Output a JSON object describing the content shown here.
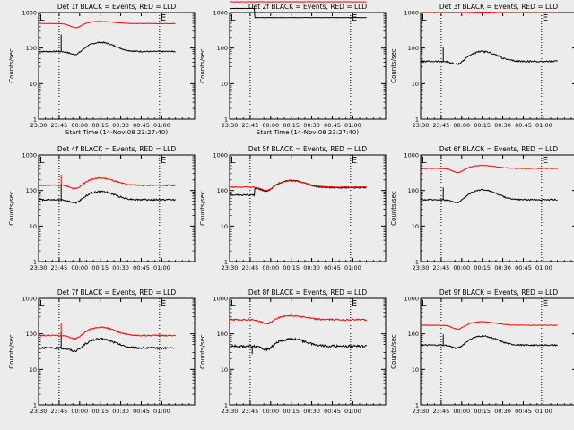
{
  "chart_data": [
    {
      "type": "line",
      "title": "Det 1f BLACK = Events, RED = LLD",
      "xlabel": "Start Time (14-Nov-08 23:27:40)",
      "ylabel": "Counts/sec",
      "yscale": "log",
      "ylim": [
        1,
        1000
      ],
      "yticks": [
        "1",
        "10",
        "100",
        "1000"
      ],
      "xticks": [
        "23:30",
        "23:45",
        "00:00",
        "00:15",
        "00:30",
        "00:45",
        "01:00"
      ],
      "xlim_min": [
        -12.333,
        101.667
      ],
      "xtick_min": [
        -12.333,
        2.667,
        17.667,
        32.667,
        47.667,
        62.667,
        77.667
      ],
      "vlines_min": [
        2.667,
        76.0
      ],
      "markers": [
        {
          "label": "L",
          "x_min": -12.3
        },
        {
          "label": "E",
          "x_min": 76.0
        }
      ],
      "grid": false,
      "series": [
        {
          "name": "BLACK = Events",
          "color": "#000000",
          "base": 80,
          "bump": 1.8,
          "step": null,
          "spike": [
            4,
            3.0
          ],
          "noise": 0.04
        },
        {
          "name": "RED = LLD",
          "color": "#ff0000",
          "base": 490,
          "bump": 1.15,
          "step": null,
          "spike": null,
          "noise": 0.015
        }
      ]
    },
    {
      "type": "line",
      "title": "Det 2f BLACK = Events, RED = LLD",
      "xlabel": "Start Time (14-Nov-08 23:27:40)",
      "ylabel": "Counts/sec",
      "yscale": "log",
      "ylim": [
        1,
        1000
      ],
      "yticks": [
        "1",
        "10",
        "100",
        "1000"
      ],
      "xticks": [
        "23:30",
        "23:45",
        "00:00",
        "00:15",
        "00:30",
        "00:45",
        "01:00"
      ],
      "xlim_min": [
        -12.333,
        101.667
      ],
      "xtick_min": [
        -12.333,
        2.667,
        17.667,
        32.667,
        47.667,
        62.667,
        77.667
      ],
      "vlines_min": [
        2.667,
        76.0
      ],
      "markers": [
        {
          "label": "L",
          "x_min": -12.3
        },
        {
          "label": "E",
          "x_min": 76.0
        }
      ],
      "grid": false,
      "series": [
        {
          "name": "BLACK = Events",
          "color": "#000000",
          "base": 1300,
          "bump": 1.0,
          "step": [
            6,
            720
          ],
          "spike": null,
          "noise": 0.01
        },
        {
          "name": "RED = LLD",
          "color": "#ff0000",
          "base": 2000,
          "bump": 1.0,
          "step": null,
          "spike": null,
          "noise": 0.01
        }
      ]
    },
    {
      "type": "line",
      "title": "Det 3f BLACK = Events, RED = LLD",
      "xlabel": "",
      "ylabel": "Counts/sec",
      "yscale": "log",
      "ylim": [
        1,
        1000
      ],
      "yticks": [
        "1",
        "10",
        "100",
        "1000"
      ],
      "xticks": [
        "23:30",
        "23:45",
        "00:00",
        "00:15",
        "00:30",
        "00:45",
        "01:00"
      ],
      "xlim_min": [
        -12.333,
        101.667
      ],
      "xtick_min": [
        -12.333,
        2.667,
        17.667,
        32.667,
        47.667,
        62.667,
        77.667
      ],
      "vlines_min": [
        2.667,
        76.0
      ],
      "markers": [
        {
          "label": "L",
          "x_min": -12.3
        },
        {
          "label": "E",
          "x_min": 76.0
        }
      ],
      "grid": false,
      "series": [
        {
          "name": "BLACK = Events",
          "color": "#000000",
          "base": 42,
          "bump": 1.9,
          "step": null,
          "spike": [
            4,
            2.5
          ],
          "noise": 0.05
        },
        {
          "name": "RED = LLD",
          "color": "#ff0000",
          "base": 980,
          "bump": 1.05,
          "step": null,
          "spike": null,
          "noise": 0.015
        }
      ]
    },
    {
      "type": "line",
      "title": "Det 4f BLACK = Events, RED = LLD",
      "xlabel": "",
      "ylabel": "Counts/sec",
      "yscale": "log",
      "ylim": [
        1,
        1000
      ],
      "yticks": [
        "1",
        "10",
        "100",
        "1000"
      ],
      "xticks": [
        "23:30",
        "23:45",
        "00:00",
        "00:15",
        "00:30",
        "00:45",
        "01:00"
      ],
      "xlim_min": [
        -12.333,
        101.667
      ],
      "xtick_min": [
        -12.333,
        2.667,
        17.667,
        32.667,
        47.667,
        62.667,
        77.667
      ],
      "vlines_min": [
        2.667,
        76.0
      ],
      "markers": [
        {
          "label": "L",
          "x_min": -12.3
        },
        {
          "label": "E",
          "x_min": 76.0
        }
      ],
      "grid": false,
      "series": [
        {
          "name": "BLACK = Events",
          "color": "#000000",
          "base": 55,
          "bump": 1.7,
          "step": null,
          "spike": [
            4,
            2.8
          ],
          "noise": 0.05
        },
        {
          "name": "RED = LLD",
          "color": "#ff0000",
          "base": 140,
          "bump": 1.6,
          "step": null,
          "spike": [
            4,
            2.0
          ],
          "noise": 0.04
        }
      ]
    },
    {
      "type": "line",
      "title": "Det 5f BLACK = Events, RED = LLD",
      "xlabel": "",
      "ylabel": "Counts/sec",
      "yscale": "log",
      "ylim": [
        1,
        1000
      ],
      "yticks": [
        "1",
        "10",
        "100",
        "1000"
      ],
      "xticks": [
        "23:30",
        "23:45",
        "00:00",
        "00:15",
        "00:30",
        "00:45",
        "01:00"
      ],
      "xlim_min": [
        -12.333,
        101.667
      ],
      "xtick_min": [
        -12.333,
        2.667,
        17.667,
        32.667,
        47.667,
        62.667,
        77.667
      ],
      "vlines_min": [
        2.667,
        76.0
      ],
      "markers": [
        {
          "label": "L",
          "x_min": -12.3
        },
        {
          "label": "E",
          "x_min": 76.0
        }
      ],
      "grid": false,
      "series": [
        {
          "name": "BLACK = Events",
          "color": "#000000",
          "base": 75,
          "bump": 1.6,
          "step": [
            6,
            120
          ],
          "spike": null,
          "noise": 0.04
        },
        {
          "name": "RED = LLD",
          "color": "#ff0000",
          "base": 125,
          "bump": 1.5,
          "step": null,
          "spike": null,
          "noise": 0.03
        }
      ]
    },
    {
      "type": "line",
      "title": "Det 6f BLACK = Events, RED = LLD",
      "xlabel": "",
      "ylabel": "Counts/sec",
      "yscale": "log",
      "ylim": [
        1,
        1000
      ],
      "yticks": [
        "1",
        "10",
        "100",
        "1000"
      ],
      "xticks": [
        "23:30",
        "23:45",
        "00:00",
        "00:15",
        "00:30",
        "00:45",
        "01:00"
      ],
      "xlim_min": [
        -12.333,
        101.667
      ],
      "xtick_min": [
        -12.333,
        2.667,
        17.667,
        32.667,
        47.667,
        62.667,
        77.667
      ],
      "vlines_min": [
        2.667,
        76.0
      ],
      "markers": [
        {
          "label": "L",
          "x_min": -12.3
        },
        {
          "label": "E",
          "x_min": 76.0
        }
      ],
      "grid": false,
      "series": [
        {
          "name": "BLACK = Events",
          "color": "#000000",
          "base": 55,
          "bump": 1.9,
          "step": null,
          "spike": [
            4,
            2.2
          ],
          "noise": 0.04
        },
        {
          "name": "RED = LLD",
          "color": "#ff0000",
          "base": 420,
          "bump": 1.2,
          "step": null,
          "spike": null,
          "noise": 0.02
        }
      ]
    },
    {
      "type": "line",
      "title": "Det 7f BLACK = Events, RED = LLD",
      "xlabel": "",
      "ylabel": "Counts/sec",
      "yscale": "log",
      "ylim": [
        1,
        1000
      ],
      "yticks": [
        "1",
        "10",
        "100",
        "1000"
      ],
      "xticks": [
        "23:30",
        "23:45",
        "00:00",
        "00:15",
        "00:30",
        "00:45",
        "01:00"
      ],
      "xlim_min": [
        -12.333,
        101.667
      ],
      "xtick_min": [
        -12.333,
        2.667,
        17.667,
        32.667,
        47.667,
        62.667,
        77.667
      ],
      "vlines_min": [
        2.667,
        76.0
      ],
      "markers": [
        {
          "label": "L",
          "x_min": -12.3
        },
        {
          "label": "E",
          "x_min": 76.0
        }
      ],
      "grid": false,
      "series": [
        {
          "name": "BLACK = Events",
          "color": "#000000",
          "base": 40,
          "bump": 1.8,
          "step": null,
          "spike": [
            4,
            2.8
          ],
          "noise": 0.06
        },
        {
          "name": "RED = LLD",
          "color": "#ff0000",
          "base": 90,
          "bump": 1.7,
          "step": null,
          "spike": [
            4,
            2.2
          ],
          "noise": 0.04
        }
      ]
    },
    {
      "type": "line",
      "title": "Det 8f BLACK = Events, RED = LLD",
      "xlabel": "",
      "ylabel": "Counts/sec",
      "yscale": "log",
      "ylim": [
        1,
        1000
      ],
      "yticks": [
        "1",
        "10",
        "100",
        "1000"
      ],
      "xticks": [
        "23:30",
        "23:45",
        "00:00",
        "00:15",
        "00:30",
        "00:45",
        "01:00"
      ],
      "xlim_min": [
        -12.333,
        101.667
      ],
      "xtick_min": [
        -12.333,
        2.667,
        17.667,
        32.667,
        47.667,
        62.667,
        77.667
      ],
      "vlines_min": [
        2.667,
        76.0
      ],
      "markers": [
        {
          "label": "L",
          "x_min": -12.3
        },
        {
          "label": "E",
          "x_min": 76.0
        }
      ],
      "grid": false,
      "series": [
        {
          "name": "BLACK = Events",
          "color": "#000000",
          "base": 45,
          "bump": 1.6,
          "step": null,
          "spike": [
            4,
            0.6
          ],
          "noise": 0.07
        },
        {
          "name": "RED = LLD",
          "color": "#ff0000",
          "base": 250,
          "bump": 1.3,
          "step": null,
          "spike": null,
          "noise": 0.05
        }
      ]
    },
    {
      "type": "line",
      "title": "Det 9f BLACK = Events, RED = LLD",
      "xlabel": "",
      "ylabel": "Counts/sec",
      "yscale": "log",
      "ylim": [
        1,
        1000
      ],
      "yticks": [
        "1",
        "10",
        "100",
        "1000"
      ],
      "xticks": [
        "23:30",
        "23:45",
        "00:00",
        "00:15",
        "00:30",
        "00:45",
        "01:00"
      ],
      "xlim_min": [
        -12.333,
        101.667
      ],
      "xtick_min": [
        -12.333,
        2.667,
        17.667,
        32.667,
        47.667,
        62.667,
        77.667
      ],
      "vlines_min": [
        2.667,
        76.0
      ],
      "markers": [
        {
          "label": "L",
          "x_min": -12.3
        },
        {
          "label": "E",
          "x_min": 76.0
        }
      ],
      "grid": false,
      "series": [
        {
          "name": "BLACK = Events",
          "color": "#000000",
          "base": 48,
          "bump": 1.8,
          "step": null,
          "spike": [
            4,
            2.0
          ],
          "noise": 0.04
        },
        {
          "name": "RED = LLD",
          "color": "#ff0000",
          "base": 175,
          "bump": 1.25,
          "step": null,
          "spike": null,
          "noise": 0.02
        }
      ]
    }
  ]
}
